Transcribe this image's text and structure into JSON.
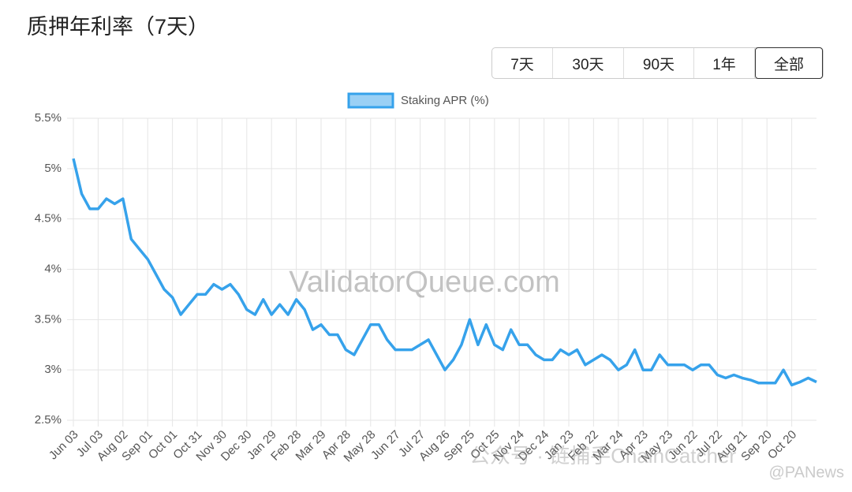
{
  "chart_data": {
    "type": "line",
    "title": "质押年利率（7天）",
    "watermark": "ValidatorQueue.com",
    "categories": [
      "Jun 03",
      null,
      null,
      "Jul 03",
      null,
      null,
      "Aug 02",
      null,
      null,
      "Sep 01",
      null,
      null,
      "Oct 01",
      null,
      null,
      "Oct 31",
      null,
      null,
      "Nov 30",
      null,
      null,
      "Dec 30",
      null,
      null,
      "Jan 29",
      null,
      null,
      "Feb 28",
      null,
      null,
      "Mar 29",
      null,
      null,
      "Apr 28",
      null,
      null,
      "May 28",
      null,
      null,
      "Jun 27",
      null,
      null,
      "Jul 27",
      null,
      null,
      "Aug 26",
      null,
      null,
      "Sep 25",
      null,
      null,
      "Oct 25",
      null,
      null,
      "Nov 24",
      null,
      null,
      "Dec 24",
      null,
      null,
      "Jan 23",
      null,
      null,
      "Feb 22",
      null,
      null,
      "Mar 24",
      null,
      null,
      "Apr 23",
      null,
      null,
      "May 23",
      null,
      null,
      "Jun 22",
      null,
      null,
      "Jul 22",
      null,
      null,
      "Aug 21",
      null,
      null,
      "Sep 20",
      null,
      null,
      "Oct 20",
      null,
      null,
      null
    ],
    "series": [
      {
        "name": "Staking APR (%)",
        "color": "#36a2eb",
        "values": [
          5.1,
          4.75,
          4.6,
          4.6,
          4.7,
          4.65,
          4.7,
          4.3,
          4.2,
          4.1,
          3.95,
          3.8,
          3.72,
          3.55,
          3.65,
          3.75,
          3.75,
          3.85,
          3.8,
          3.85,
          3.75,
          3.6,
          3.55,
          3.7,
          3.55,
          3.65,
          3.55,
          3.7,
          3.6,
          3.4,
          3.45,
          3.35,
          3.35,
          3.2,
          3.15,
          3.3,
          3.45,
          3.45,
          3.3,
          3.2,
          3.2,
          3.2,
          3.25,
          3.3,
          3.15,
          3.0,
          3.1,
          3.25,
          3.5,
          3.25,
          3.45,
          3.25,
          3.2,
          3.4,
          3.25,
          3.25,
          3.15,
          3.1,
          3.1,
          3.2,
          3.15,
          3.2,
          3.05,
          3.1,
          3.15,
          3.1,
          3.0,
          3.05,
          3.2,
          3.0,
          3.0,
          3.15,
          3.05,
          3.05,
          3.05,
          3.0,
          3.05,
          3.05,
          2.95,
          2.92,
          2.95,
          2.92,
          2.9,
          2.87,
          2.87,
          2.87,
          3.0,
          2.85,
          2.88,
          2.92,
          2.88
        ]
      }
    ],
    "ylim": [
      2.5,
      5.5
    ],
    "yticks": [
      {
        "value": 2.5,
        "label": "2.5%"
      },
      {
        "value": 3,
        "label": "3%"
      },
      {
        "value": 3.5,
        "label": "3.5%"
      },
      {
        "value": 4,
        "label": "4%"
      },
      {
        "value": 4.5,
        "label": "4.5%"
      },
      {
        "value": 5,
        "label": "5%"
      },
      {
        "value": 5.5,
        "label": "5.5%"
      }
    ],
    "grid": true
  },
  "range_buttons": [
    "7天",
    "30天",
    "90天",
    "1年",
    "全部"
  ],
  "selected_range": 4,
  "overlays": [
    "公众号 · 链捕手ChainCatcher",
    "@PANews"
  ]
}
